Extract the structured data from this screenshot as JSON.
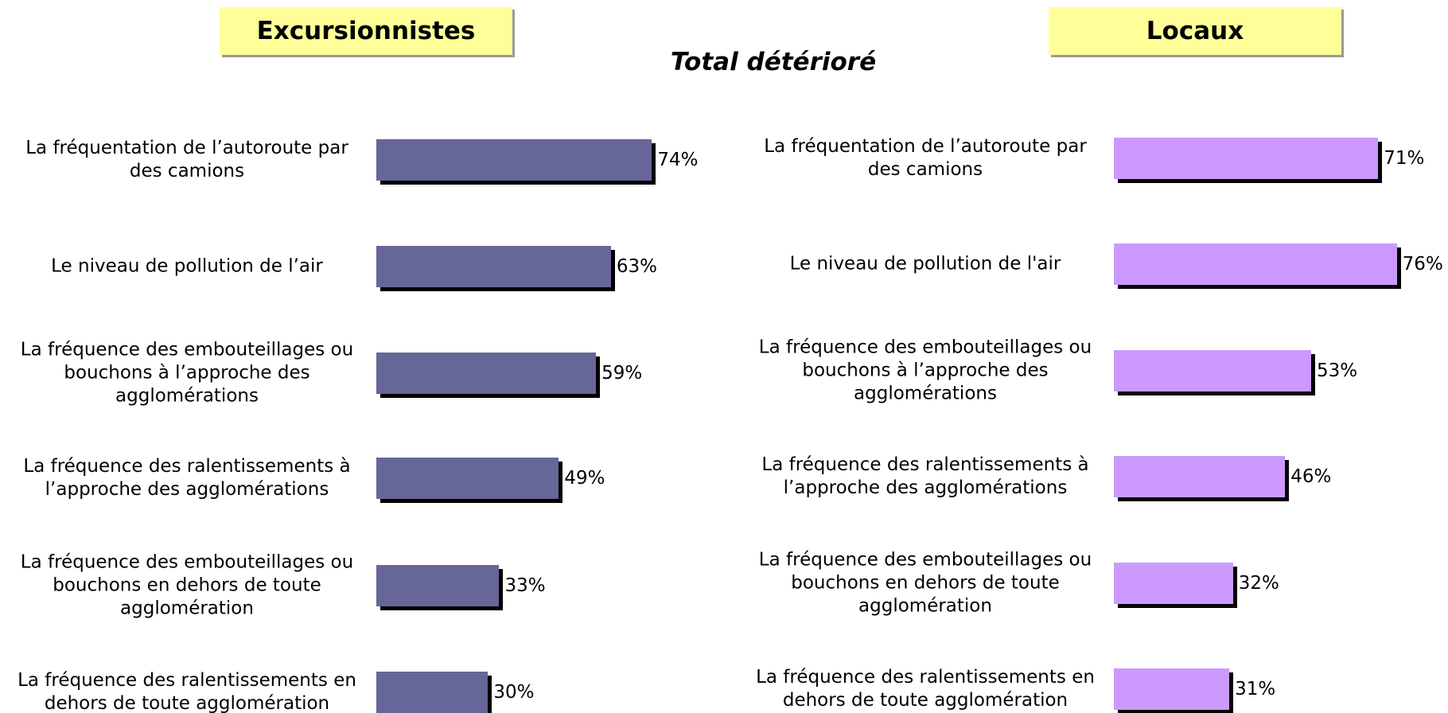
{
  "title": "Total détérioré",
  "chart_data": [
    {
      "type": "bar",
      "orientation": "horizontal",
      "title": "Excursionnistes",
      "color": "#666699",
      "categories": [
        "La fréquentation de l’autoroute par des camions",
        "Le niveau de pollution de l’air",
        "La fréquence des embouteillages ou bouchons à l’approche des agglomérations",
        "La fréquence des ralentissements à l’approche des agglomérations",
        "La fréquence des embouteillages ou bouchons en dehors de toute agglomération",
        "La fréquence des ralentissements en dehors de toute agglomération"
      ],
      "values": [
        74,
        63,
        59,
        49,
        33,
        30
      ],
      "value_labels": [
        "74%",
        "63%",
        "59%",
        "49%",
        "33%",
        "30%"
      ],
      "xlim": [
        0,
        100
      ]
    },
    {
      "type": "bar",
      "orientation": "horizontal",
      "title": "Locaux",
      "color": "#cc99ff",
      "categories": [
        "La fréquentation de l’autoroute par des camions",
        "Le niveau de pollution de l'air",
        "La fréquence des embouteillages ou bouchons à l’approche des agglomérations",
        "La fréquence des ralentissements à l’approche des agglomérations",
        "La fréquence des embouteillages ou bouchons en dehors de toute agglomération",
        "La fréquence des ralentissements en dehors de toute agglomération"
      ],
      "values": [
        71,
        76,
        53,
        46,
        32,
        31
      ],
      "value_labels": [
        "71%",
        "76%",
        "53%",
        "46%",
        "32%",
        "31%"
      ],
      "xlim": [
        0,
        100
      ]
    }
  ]
}
